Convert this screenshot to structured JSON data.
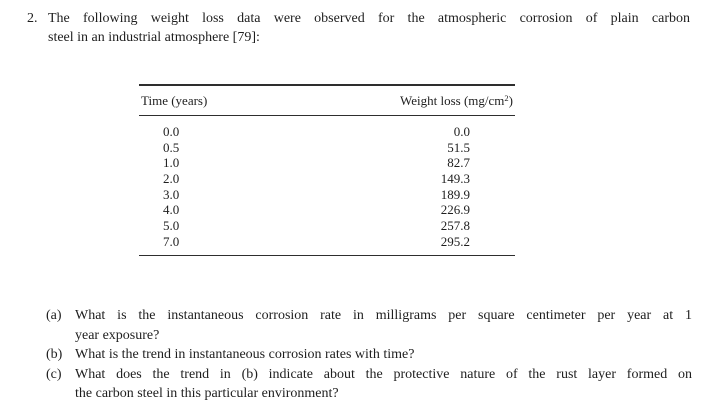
{
  "page": {
    "background_color": "#ffffff",
    "text_color": "#1e1e1e",
    "rule_color": "#2e2e2e"
  },
  "problem": {
    "number": "2.",
    "line1": "The following weight loss data were observed for the atmospheric corrosion of plain carbon",
    "line2": "steel in an industrial atmosphere [79]:"
  },
  "table": {
    "col_time_header": "Time (years)",
    "col_loss_header_prefix": "Weight loss (mg/cm",
    "col_loss_header_sup": "2",
    "col_loss_header_suffix": ")",
    "rows": [
      {
        "time": "0.0",
        "loss": "0.0"
      },
      {
        "time": "0.5",
        "loss": "51.5"
      },
      {
        "time": "1.0",
        "loss": "82.7"
      },
      {
        "time": "2.0",
        "loss": "149.3"
      },
      {
        "time": "3.0",
        "loss": "189.9"
      },
      {
        "time": "4.0",
        "loss": "226.9"
      },
      {
        "time": "5.0",
        "loss": "257.8"
      },
      {
        "time": "7.0",
        "loss": "295.2"
      }
    ]
  },
  "questions": [
    {
      "label": "(a)",
      "line1": "What is the instantaneous corrosion rate in milligrams per square centimeter per year at 1",
      "line2": "year exposure?"
    },
    {
      "label": "(b)",
      "line1": "What is the trend in instantaneous corrosion rates with time?"
    },
    {
      "label": "(c)",
      "line1": "What does the trend in (b) indicate about the protective nature of the rust layer formed on",
      "line2": "the carbon steel in this particular environment?"
    }
  ]
}
